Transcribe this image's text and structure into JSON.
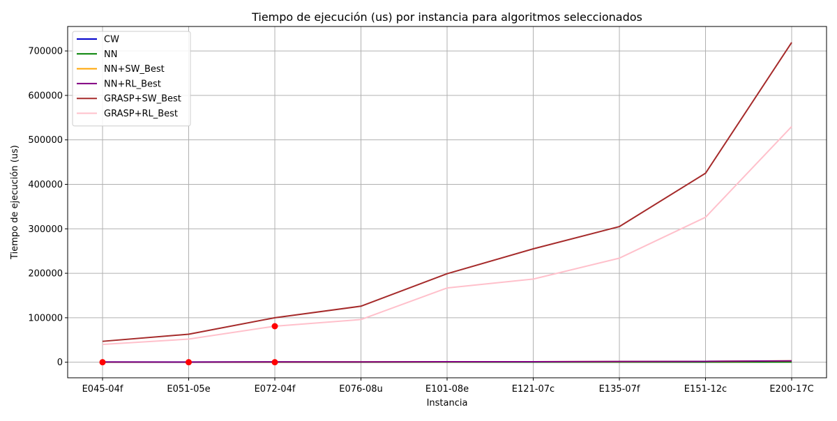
{
  "chart_data": {
    "type": "line",
    "title": "Tiempo de ejecución (us) por instancia para algoritmos seleccionados",
    "xlabel": "Instancia",
    "ylabel": "Tiempo de ejecución (us)",
    "categories": [
      "E045-04f",
      "E051-05e",
      "E072-04f",
      "E076-08u",
      "E101-08e",
      "E121-07c",
      "E135-07f",
      "E151-12c",
      "E200-17C"
    ],
    "ylim": [
      -35000,
      755000
    ],
    "yticks": [
      0,
      100000,
      200000,
      300000,
      400000,
      500000,
      600000,
      700000
    ],
    "grid": true,
    "legend_position": "top-left",
    "series": [
      {
        "name": "CW",
        "color": "#0000cc",
        "values": [
          500,
          400,
          600,
          500,
          700,
          600,
          900,
          800,
          1500
        ]
      },
      {
        "name": "NN",
        "color": "#008000",
        "values": [
          100,
          100,
          150,
          150,
          200,
          200,
          250,
          300,
          500
        ]
      },
      {
        "name": "NN+SW_Best",
        "color": "#ffa500",
        "values": [
          300,
          300,
          500,
          600,
          900,
          1000,
          1400,
          1800,
          3000
        ]
      },
      {
        "name": "NN+RL_Best",
        "color": "#800080",
        "values": [
          400,
          350,
          600,
          700,
          1000,
          1100,
          1600,
          1900,
          3000
        ]
      },
      {
        "name": "GRASP+SW_Best",
        "color": "#a52a2a",
        "values": [
          47000,
          63000,
          100000,
          126000,
          199000,
          255000,
          305000,
          425000,
          719000
        ]
      },
      {
        "name": "GRASP+RL_Best",
        "color": "#ffc0cb",
        "values": [
          40000,
          52000,
          81000,
          96000,
          167000,
          187000,
          234000,
          326000,
          530000
        ]
      }
    ],
    "highlight_points": [
      {
        "x": "E045-04f",
        "y": 0
      },
      {
        "x": "E051-05e",
        "y": 0
      },
      {
        "x": "E072-04f",
        "y": 0
      },
      {
        "x": "E072-04f",
        "y": 81000
      }
    ],
    "highlight_color": "#ff0000"
  }
}
